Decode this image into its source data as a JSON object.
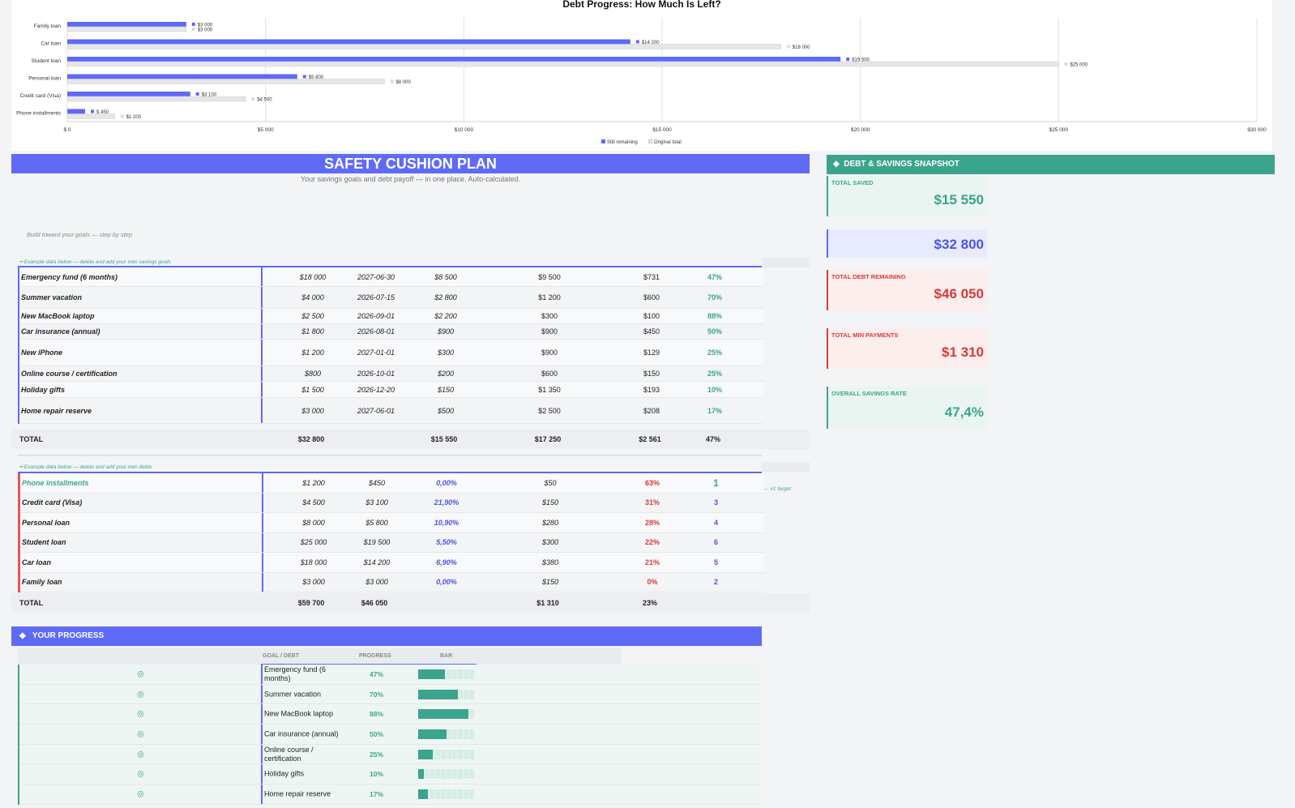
{
  "chart_data": {
    "type": "bar",
    "title": "Debt Progress: How Much Is Left?",
    "categories": [
      "Family loan",
      "Car loan",
      "Student loan",
      "Personal loan",
      "Credit card (Visa)",
      "Phone installments"
    ],
    "series": [
      {
        "name": "Still remaining",
        "values": [
          3000,
          14200,
          19500,
          5800,
          3100,
          450
        ],
        "labels": [
          "$3 000",
          "$14 200",
          "$19 500",
          "$5 800",
          "$3 100",
          "$ 450"
        ],
        "color": "#5f6af7"
      },
      {
        "name": "Original total",
        "values": [
          3000,
          18000,
          25000,
          8000,
          4500,
          1200
        ],
        "labels": [
          "$3 000",
          "$18 000",
          "$25 000",
          "$8 000",
          "$4 500",
          "$1 200"
        ],
        "color": "#e6e6e6"
      }
    ],
    "xlim": [
      0,
      30000
    ],
    "xticks": [
      "$ 0",
      "$5 000",
      "$10 000",
      "$15 000",
      "$20 000",
      "$25 000",
      "$30 000"
    ],
    "grid": true,
    "legend": "bottom"
  },
  "plan": {
    "title": "SAFETY CUSHION PLAN",
    "subtitle": "Your savings goals and debt payoff — in one place. Auto-calculated.",
    "step_note": "Build toward your goals — step by step",
    "savings_note": "Example data below — delete and add your own savings goals",
    "debts_note": "Example data below — delete and add your own debts",
    "target_note": "← #1 target"
  },
  "savings": [
    {
      "name": "Emergency fund (6 months)",
      "target": "$18 000",
      "date": "2027-06-30",
      "saved": "$8 500",
      "left": "$9 500",
      "monthly": "$731",
      "pct": "47%"
    },
    {
      "name": "Summer vacation",
      "target": "$4 000",
      "date": "2026-07-15",
      "saved": "$2 800",
      "left": "$1 200",
      "monthly": "$600",
      "pct": "70%"
    },
    {
      "name": "New MacBook laptop",
      "target": "$2 500",
      "date": "2026-09-01",
      "saved": "$2 200",
      "left": "$300",
      "monthly": "$100",
      "pct": "88%"
    },
    {
      "name": "Car insurance (annual)",
      "target": "$1 800",
      "date": "2026-08-01",
      "saved": "$900",
      "left": "$900",
      "monthly": "$450",
      "pct": "50%"
    },
    {
      "name": "New iPhone",
      "target": "$1 200",
      "date": "2027-01-01",
      "saved": "$300",
      "left": "$900",
      "monthly": "$129",
      "pct": "25%"
    },
    {
      "name": "Online course / certification",
      "target": "$800",
      "date": "2026-10-01",
      "saved": "$200",
      "left": "$600",
      "monthly": "$150",
      "pct": "25%"
    },
    {
      "name": "Holiday gifts",
      "target": "$1 500",
      "date": "2026-12-20",
      "saved": "$150",
      "left": "$1 350",
      "monthly": "$193",
      "pct": "10%"
    },
    {
      "name": "Home repair reserve",
      "target": "$3 000",
      "date": "2027-06-01",
      "saved": "$500",
      "left": "$2 500",
      "monthly": "$208",
      "pct": "17%"
    }
  ],
  "savings_total": {
    "label": "TOTAL",
    "target": "$32 800",
    "saved": "$15 550",
    "left": "$17 250",
    "monthly": "$2 561",
    "pct": "47%"
  },
  "debts": [
    {
      "name": "Phone installments",
      "original": "$1 200",
      "remaining": "$450",
      "rate": "0,00%",
      "min": "$50",
      "paid": "63%",
      "order": "1"
    },
    {
      "name": "Credit card (Visa)",
      "original": "$4 500",
      "remaining": "$3 100",
      "rate": "21,90%",
      "min": "$150",
      "paid": "31%",
      "order": "3"
    },
    {
      "name": "Personal loan",
      "original": "$8 000",
      "remaining": "$5 800",
      "rate": "10,90%",
      "min": "$280",
      "paid": "28%",
      "order": "4"
    },
    {
      "name": "Student loan",
      "original": "$25 000",
      "remaining": "$19 500",
      "rate": "5,50%",
      "min": "$300",
      "paid": "22%",
      "order": "6"
    },
    {
      "name": "Car loan",
      "original": "$18 000",
      "remaining": "$14 200",
      "rate": "6,90%",
      "min": "$380",
      "paid": "21%",
      "order": "5"
    },
    {
      "name": "Family loan",
      "original": "$3 000",
      "remaining": "$3 000",
      "rate": "0,00%",
      "min": "$150",
      "paid": "0%",
      "order": "2"
    }
  ],
  "debts_total": {
    "label": "TOTAL",
    "original": "$59 700",
    "remaining": "$46 050",
    "min": "$1 310",
    "paid": "23%"
  },
  "snapshot": {
    "title": "DEBT & SAVINGS SNAPSHOT",
    "total_saved_label": "TOTAL SAVED",
    "total_saved": "$15 550",
    "total_target": "$32 800",
    "debt_label": "TOTAL DEBT REMAINING",
    "debt": "$46 050",
    "min_label": "TOTAL MIN PAYMENTS",
    "min": "$1 310",
    "rate_label": "OVERALL SAVINGS RATE",
    "rate": "47,4%"
  },
  "progress": {
    "title": "YOUR PROGRESS",
    "col_goal": "GOAL / DEBT",
    "col_progress": "PROGRESS",
    "col_bar": "BAR",
    "items": [
      {
        "name": "Emergency fund (6 months)",
        "pct": "47%",
        "value": 0.47
      },
      {
        "name": "Summer vacation",
        "pct": "70%",
        "value": 0.7
      },
      {
        "name": "New MacBook laptop",
        "pct": "88%",
        "value": 0.88
      },
      {
        "name": "Car insurance (annual)",
        "pct": "50%",
        "value": 0.5
      },
      {
        "name": "Online course / certification",
        "pct": "25%",
        "value": 0.25
      },
      {
        "name": "Holiday gifts",
        "pct": "10%",
        "value": 0.1
      },
      {
        "name": "Home repair reserve",
        "pct": "17%",
        "value": 0.17
      }
    ]
  },
  "colors": {
    "accent": "#5f6af7",
    "teal": "#3ba48c",
    "red": "#d63b3b"
  },
  "icons": {
    "progress_item": "target-icon",
    "section": "diamond-icon"
  }
}
